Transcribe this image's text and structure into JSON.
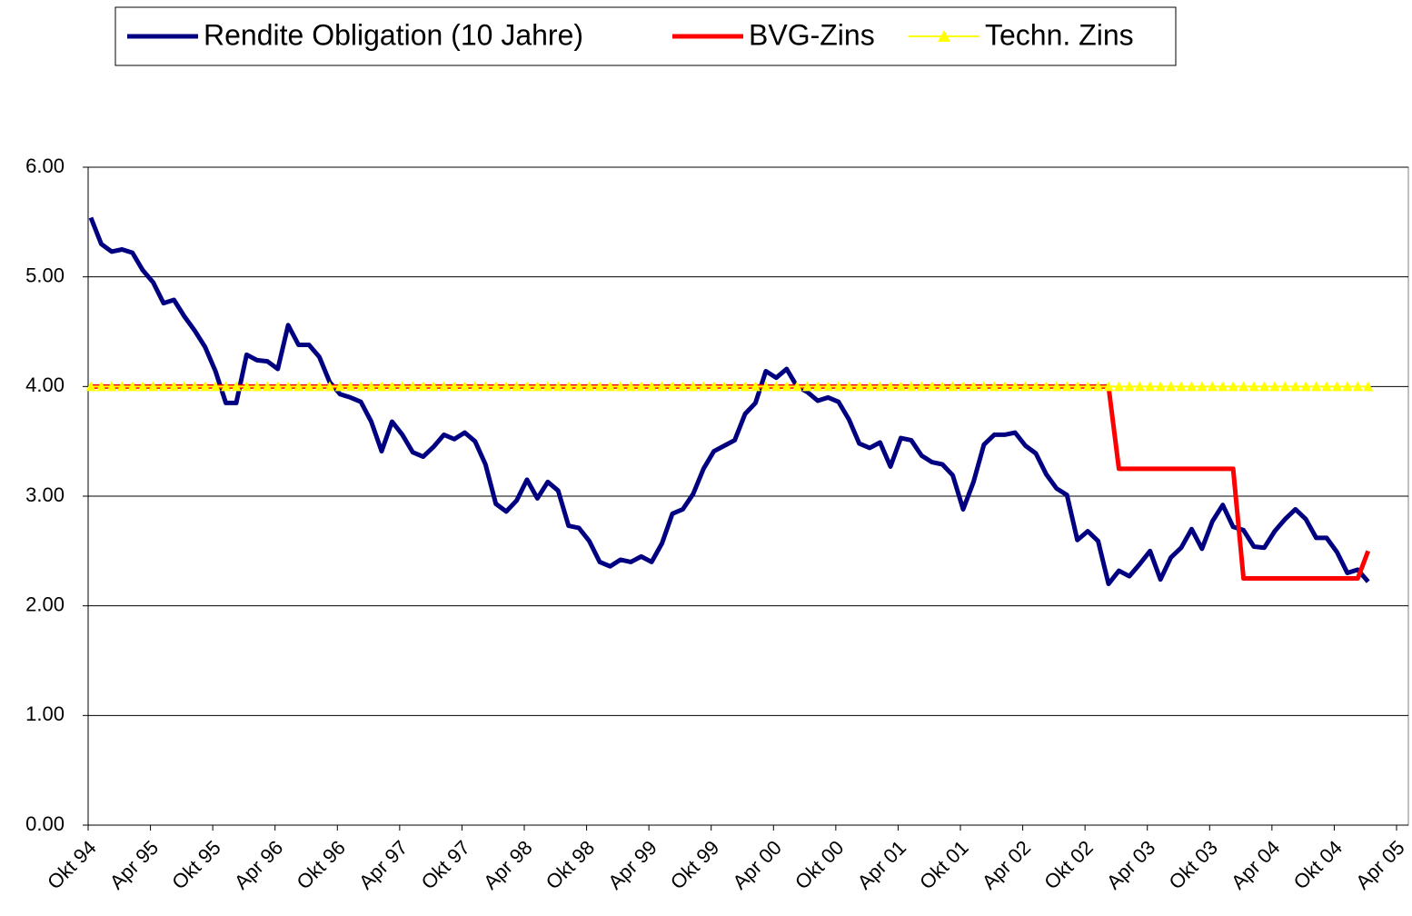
{
  "chart_data": {
    "type": "line",
    "categories": [
      "Okt 94",
      null,
      null,
      null,
      null,
      null,
      "Apr 95",
      null,
      null,
      null,
      null,
      null,
      "Okt 95",
      null,
      null,
      null,
      null,
      null,
      "Apr 96",
      null,
      null,
      null,
      null,
      null,
      "Okt 96",
      null,
      null,
      null,
      null,
      null,
      "Apr 97",
      null,
      null,
      null,
      null,
      null,
      "Okt 97",
      null,
      null,
      null,
      null,
      null,
      "Apr 98",
      null,
      null,
      null,
      null,
      null,
      "Okt 98",
      null,
      null,
      null,
      null,
      null,
      "Apr 99",
      null,
      null,
      null,
      null,
      null,
      "Okt 99",
      null,
      null,
      null,
      null,
      null,
      "Apr 00",
      null,
      null,
      null,
      null,
      null,
      "Okt 00",
      null,
      null,
      null,
      null,
      null,
      "Apr 01",
      null,
      null,
      null,
      null,
      null,
      "Okt 01",
      null,
      null,
      null,
      null,
      null,
      "Apr 02",
      null,
      null,
      null,
      null,
      null,
      "Okt 02",
      null,
      null,
      null,
      null,
      null,
      "Apr 03",
      null,
      null,
      null,
      null,
      null,
      "Okt 03",
      null,
      null,
      null,
      null,
      null,
      "Apr 04",
      null,
      null,
      null,
      null,
      null,
      "Okt 04",
      null,
      null,
      null,
      null,
      null,
      "Apr 05"
    ],
    "series": [
      {
        "name": "Rendite Obligation (10 Jahre)",
        "color": "#000080",
        "values": [
          5.54,
          5.3,
          5.23,
          5.25,
          5.22,
          5.06,
          4.95,
          4.76,
          4.79,
          4.64,
          4.51,
          4.36,
          4.14,
          3.85,
          3.85,
          4.29,
          4.24,
          4.23,
          4.16,
          4.56,
          4.38,
          4.38,
          4.27,
          4.04,
          3.93,
          3.9,
          3.86,
          3.68,
          3.41,
          3.68,
          3.56,
          3.4,
          3.36,
          3.45,
          3.56,
          3.52,
          3.58,
          3.5,
          3.29,
          2.93,
          2.86,
          2.96,
          3.15,
          2.98,
          3.13,
          3.05,
          2.73,
          2.71,
          2.59,
          2.4,
          2.36,
          2.42,
          2.4,
          2.45,
          2.4,
          2.57,
          2.84,
          2.88,
          3.02,
          3.25,
          3.41,
          3.46,
          3.51,
          3.75,
          3.85,
          4.14,
          4.08,
          4.16,
          4.0,
          3.95,
          3.87,
          3.9,
          3.86,
          3.7,
          3.48,
          3.44,
          3.49,
          3.27,
          3.53,
          3.51,
          3.37,
          3.31,
          3.29,
          3.19,
          2.88,
          3.13,
          3.47,
          3.56,
          3.56,
          3.58,
          3.46,
          3.39,
          3.2,
          3.07,
          3.01,
          2.6,
          2.68,
          2.59,
          2.2,
          2.32,
          2.27,
          2.38,
          2.5,
          2.24,
          2.44,
          2.53,
          2.7,
          2.52,
          2.77,
          2.92,
          2.72,
          2.69,
          2.54,
          2.53,
          2.68,
          2.79,
          2.88,
          2.79,
          2.62,
          2.62,
          2.49,
          2.3,
          2.33,
          2.22,
          null,
          null,
          null
        ]
      },
      {
        "name": "BVG-Zins",
        "color": "#ff0000",
        "values": [
          4,
          4,
          4,
          4,
          4,
          4,
          4,
          4,
          4,
          4,
          4,
          4,
          4,
          4,
          4,
          4,
          4,
          4,
          4,
          4,
          4,
          4,
          4,
          4,
          4,
          4,
          4,
          4,
          4,
          4,
          4,
          4,
          4,
          4,
          4,
          4,
          4,
          4,
          4,
          4,
          4,
          4,
          4,
          4,
          4,
          4,
          4,
          4,
          4,
          4,
          4,
          4,
          4,
          4,
          4,
          4,
          4,
          4,
          4,
          4,
          4,
          4,
          4,
          4,
          4,
          4,
          4,
          4,
          4,
          4,
          4,
          4,
          4,
          4,
          4,
          4,
          4,
          4,
          4,
          4,
          4,
          4,
          4,
          4,
          4,
          4,
          4,
          4,
          4,
          4,
          4,
          4,
          4,
          4,
          4,
          4,
          4,
          4,
          4,
          3.25,
          3.25,
          3.25,
          3.25,
          3.25,
          3.25,
          3.25,
          3.25,
          3.25,
          3.25,
          3.25,
          3.25,
          2.25,
          2.25,
          2.25,
          2.25,
          2.25,
          2.25,
          2.25,
          2.25,
          2.25,
          2.25,
          2.25,
          2.25,
          2.5,
          null,
          null,
          null
        ]
      },
      {
        "name": "Techn. Zins",
        "color": "#ffff00",
        "marker": "triangle",
        "values": [
          4,
          4,
          4,
          4,
          4,
          4,
          4,
          4,
          4,
          4,
          4,
          4,
          4,
          4,
          4,
          4,
          4,
          4,
          4,
          4,
          4,
          4,
          4,
          4,
          4,
          4,
          4,
          4,
          4,
          4,
          4,
          4,
          4,
          4,
          4,
          4,
          4,
          4,
          4,
          4,
          4,
          4,
          4,
          4,
          4,
          4,
          4,
          4,
          4,
          4,
          4,
          4,
          4,
          4,
          4,
          4,
          4,
          4,
          4,
          4,
          4,
          4,
          4,
          4,
          4,
          4,
          4,
          4,
          4,
          4,
          4,
          4,
          4,
          4,
          4,
          4,
          4,
          4,
          4,
          4,
          4,
          4,
          4,
          4,
          4,
          4,
          4,
          4,
          4,
          4,
          4,
          4,
          4,
          4,
          4,
          4,
          4,
          4,
          4,
          4,
          4,
          4,
          4,
          4,
          4,
          4,
          4,
          4,
          4,
          4,
          4,
          4,
          4,
          4,
          4,
          4,
          4,
          4,
          4,
          4,
          4,
          4,
          4,
          4,
          null,
          null,
          null
        ]
      }
    ],
    "ylim": [
      0,
      6
    ],
    "yticks": [
      {
        "value": 0,
        "label": "0.00"
      },
      {
        "value": 1,
        "label": "1.00"
      },
      {
        "value": 2,
        "label": "2.00"
      },
      {
        "value": 3,
        "label": "3.00"
      },
      {
        "value": 4,
        "label": "4.00"
      },
      {
        "value": 5,
        "label": "5.00"
      },
      {
        "value": 6,
        "label": "6.00"
      }
    ],
    "grid": true,
    "legend": "top"
  }
}
